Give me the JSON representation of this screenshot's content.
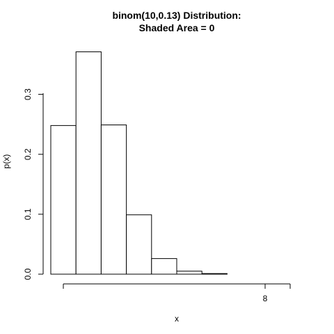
{
  "chart_data": {
    "type": "bar",
    "title_line1": "binom(10,0.13) Distribution:",
    "title_line2": "Shaded Area = 0",
    "xlabel": "x",
    "ylabel": "p(x)",
    "xlim": [
      -0.5,
      9.5
    ],
    "ylim": [
      0,
      0.375
    ],
    "x_axis_ticks": [
      "",
      "8",
      ""
    ],
    "x_axis_tick_values": [
      0,
      8,
      9
    ],
    "y_axis_ticks": [
      "0.0",
      "0.1",
      "0.2",
      "0.3"
    ],
    "y_axis_tick_values": [
      0,
      0.1,
      0.2,
      0.3
    ],
    "bar_values_x": [
      0,
      1,
      2,
      3,
      4,
      5,
      6,
      7,
      8,
      9
    ],
    "values": [
      0.248,
      0.371,
      0.249,
      0.099,
      0.026,
      0.005,
      0.001,
      0.0,
      0.0,
      0.0
    ],
    "shaded_area": 0,
    "bar_fill": "#ffffff",
    "bar_stroke": "#000000",
    "grid": false
  }
}
